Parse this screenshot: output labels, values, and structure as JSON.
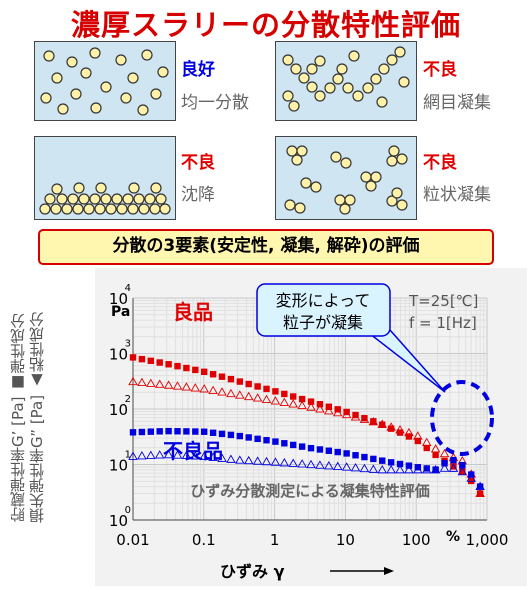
{
  "title": "濃厚スラリーの分散特性評価",
  "panels": [
    {
      "label": "良好",
      "label_color": "#0000e0",
      "desc": "均一分散"
    },
    {
      "label": "不良",
      "label_color": "#e00000",
      "desc": "網目凝集"
    },
    {
      "label": "不良",
      "label_color": "#e00000",
      "desc": "沈降"
    },
    {
      "label": "不良",
      "label_color": "#e00000",
      "desc": "粒状凝集"
    }
  ],
  "banner": "分散の3要素(安定性, 凝集, 解砕)の評価",
  "ylabel_1": "貯蔵弾性率G’ [Pa] ■弾性成分",
  "ylabel_2": "損失弾性率G” [Pa] ▲粘性成分",
  "colors": {
    "good": "#e00000",
    "bad": "#0000e0",
    "highlight": "#0000e0",
    "callout": "#d9f3ff"
  },
  "chart_data": {
    "type": "scatter",
    "title": "ひずみ分散測定による凝集特性評価",
    "xlabel": "ひずみ γ",
    "x_unit": "%",
    "y_unit": "Pa",
    "x_scale": "log",
    "y_scale": "log",
    "xlim": [
      0.01,
      1000
    ],
    "ylim": [
      1,
      10000
    ],
    "x_ticks": [
      "0.01",
      "0.1",
      "1",
      "10",
      "100",
      "1,000"
    ],
    "y_tick_base": "10",
    "y_tick_exponents": [
      "0",
      "1",
      "2",
      "3",
      "4"
    ],
    "conditions": [
      "T=25[℃]",
      "f =  1[Hz]"
    ],
    "annotations": {
      "good": "良品",
      "bad": "不良品",
      "callout": [
        "変形によって",
        "粒子が凝集"
      ]
    },
    "series": [
      {
        "group": "good",
        "marker": "filled-square",
        "x": [
          0.01,
          0.03,
          0.1,
          0.3,
          1,
          3,
          10,
          30,
          100,
          200,
          300,
          500,
          800
        ],
        "y": [
          850,
          650,
          470,
          320,
          210,
          140,
          90,
          55,
          28,
          14,
          10,
          7,
          3
        ]
      },
      {
        "group": "good",
        "marker": "open-triangle",
        "x": [
          0.01,
          0.03,
          0.1,
          0.3,
          1,
          3,
          10,
          30,
          100,
          200,
          300,
          500,
          800
        ],
        "y": [
          310,
          270,
          230,
          180,
          140,
          110,
          80,
          55,
          34,
          18,
          14,
          11,
          3
        ]
      },
      {
        "group": "bad",
        "marker": "filled-square",
        "x": [
          0.01,
          0.03,
          0.1,
          0.3,
          1,
          3,
          10,
          30,
          100,
          200,
          300,
          500,
          800
        ],
        "y": [
          38,
          40,
          39,
          33,
          26,
          20,
          16,
          12,
          9,
          8,
          13,
          9,
          4
        ]
      },
      {
        "group": "bad",
        "marker": "open-triangle",
        "x": [
          0.01,
          0.03,
          0.1,
          0.3,
          1,
          3,
          10,
          30,
          100,
          200,
          300,
          500,
          800
        ],
        "y": [
          14,
          15,
          14,
          12,
          11,
          10,
          9,
          8,
          8,
          8,
          9,
          7,
          4
        ]
      }
    ]
  }
}
